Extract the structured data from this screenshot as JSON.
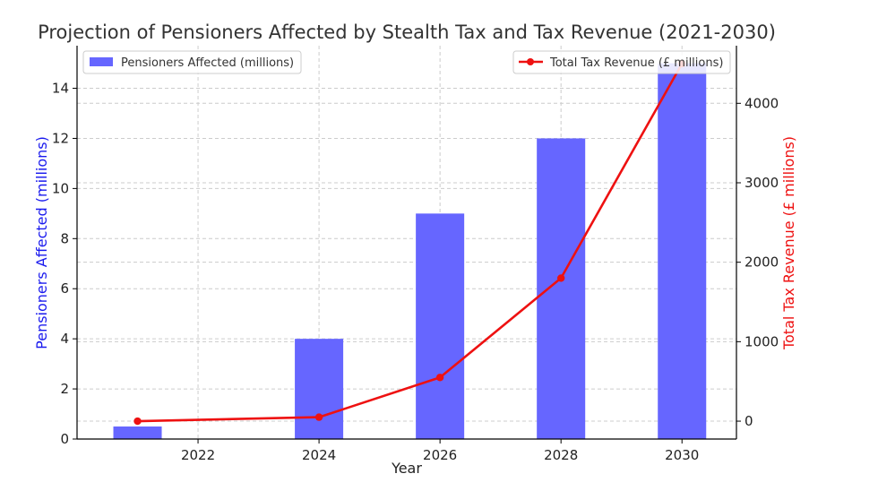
{
  "chart_data": {
    "type": "bar+line",
    "title": "Projection of Pensioners Affected by Stealth Tax and Tax Revenue (2021-2030)",
    "xlabel": "Year",
    "x": [
      2021,
      2024,
      2026,
      2028,
      2030
    ],
    "xticks": [
      2022,
      2024,
      2026,
      2028,
      2030
    ],
    "xlim": [
      2020,
      2030.9
    ],
    "grid": true,
    "series": [
      {
        "name": "Pensioners Affected (millions)",
        "type": "bar",
        "axis": "left",
        "color": "#6666ff",
        "values": [
          0.5,
          4,
          9,
          12,
          15
        ]
      },
      {
        "name": "Total Tax Revenue (£ millions)",
        "type": "line",
        "axis": "right",
        "color": "#ee1111",
        "values": [
          0,
          50,
          550,
          1800,
          4500
        ]
      }
    ],
    "y_left": {
      "label": "Pensioners Affected (millions)",
      "color": "#1a1aee",
      "ylim": [
        0,
        15.7
      ],
      "ticks": [
        0,
        2,
        4,
        6,
        8,
        10,
        12,
        14
      ]
    },
    "y_right": {
      "label": "Total Tax Revenue (£ millions)",
      "color": "#ee1111",
      "ylim": [
        -225,
        4725
      ],
      "ticks": [
        0,
        1000,
        2000,
        3000,
        4000
      ]
    },
    "legends": [
      {
        "position": "top-left",
        "series": 0
      },
      {
        "position": "top-right",
        "series": 1
      }
    ]
  }
}
